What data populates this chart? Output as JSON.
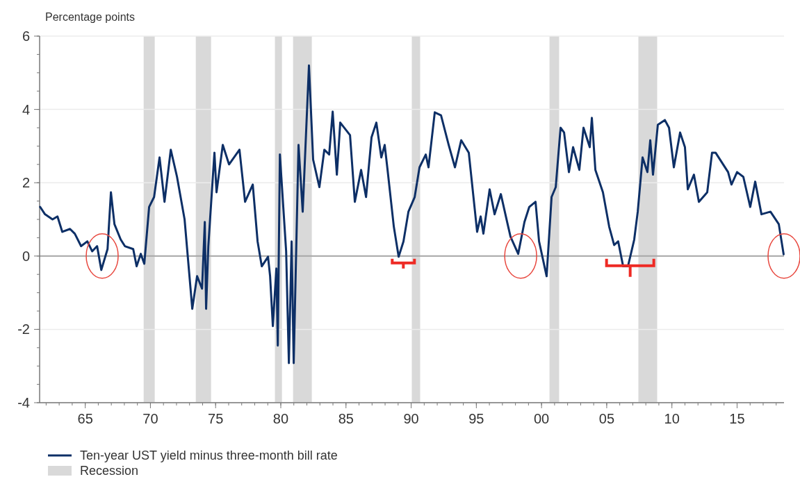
{
  "chart_data": {
    "type": "line",
    "ylabel": "Percentage points",
    "xlim": [
      1961.5,
      2018.6
    ],
    "xticks": [
      {
        "value": 1965,
        "label": "65"
      },
      {
        "value": 1970,
        "label": "70"
      },
      {
        "value": 1975,
        "label": "75"
      },
      {
        "value": 1980,
        "label": "80"
      },
      {
        "value": 1985,
        "label": "85"
      },
      {
        "value": 1990,
        "label": "90"
      },
      {
        "value": 1995,
        "label": "95"
      },
      {
        "value": 2000,
        "label": "00"
      },
      {
        "value": 2005,
        "label": "05"
      },
      {
        "value": 2010,
        "label": "10"
      },
      {
        "value": 2015,
        "label": "15"
      }
    ],
    "ylim": [
      -4,
      6
    ],
    "yticks": [
      -4,
      -2,
      0,
      2,
      4,
      6
    ],
    "grid": "y",
    "legend": "bottom",
    "ref_lines": [
      {
        "axis": "y",
        "value": 0,
        "color": "#a6a6a6"
      }
    ],
    "bands": [
      {
        "axis": "x",
        "from": 1969.48,
        "to": 1970.33,
        "label": "Recession",
        "color": "#d9d9d9"
      },
      {
        "axis": "x",
        "from": 1973.48,
        "to": 1974.65,
        "color": "#d9d9d9"
      },
      {
        "axis": "x",
        "from": 1979.55,
        "to": 1980.09,
        "color": "#d9d9d9"
      },
      {
        "axis": "x",
        "from": 1980.94,
        "to": 1982.38,
        "color": "#d9d9d9"
      },
      {
        "axis": "x",
        "from": 1990.05,
        "to": 1990.69,
        "color": "#d9d9d9"
      },
      {
        "axis": "x",
        "from": 2000.61,
        "to": 2001.35,
        "color": "#d9d9d9"
      },
      {
        "axis": "x",
        "from": 2007.43,
        "to": 2008.87,
        "color": "#d9d9d9"
      }
    ],
    "series": [
      {
        "name": "Ten-year UST yield minus three-month bill rate",
        "color": "#0d2f66",
        "x": [
          1961.54,
          1961.91,
          1962.49,
          1962.87,
          1963.24,
          1963.83,
          1964.2,
          1964.68,
          1965.16,
          1965.53,
          1965.91,
          1966.23,
          1966.71,
          1966.97,
          1967.24,
          1967.72,
          1968.04,
          1968.68,
          1968.94,
          1969.26,
          1969.53,
          1969.9,
          1970.28,
          1970.7,
          1971.08,
          1971.56,
          1972.04,
          1972.62,
          1973.21,
          1973.58,
          1973.96,
          1974.17,
          1974.27,
          1974.44,
          1974.91,
          1975.07,
          1975.55,
          1976.03,
          1976.83,
          1977.26,
          1977.85,
          1978.22,
          1978.54,
          1979.02,
          1979.18,
          1979.39,
          1979.66,
          1979.77,
          1979.93,
          1980.41,
          1980.62,
          1980.83,
          1980.99,
          1981.36,
          1981.68,
          1982.16,
          1982.48,
          1982.96,
          1983.34,
          1983.71,
          1983.98,
          1984.3,
          1984.56,
          1985.31,
          1985.68,
          1986.16,
          1986.54,
          1986.96,
          1987.33,
          1987.71,
          1987.97,
          1988.19,
          1988.67,
          1989.04,
          1989.41,
          1989.79,
          1990.27,
          1990.64,
          1991.12,
          1991.33,
          1991.81,
          1992.29,
          1992.88,
          1993.36,
          1993.84,
          1994.42,
          1995.06,
          1995.33,
          1995.54,
          1996.02,
          1996.4,
          1996.88,
          1997.36,
          1997.62,
          1998.21,
          1998.69,
          1999.06,
          1999.54,
          1999.81,
          2000.39,
          2000.77,
          2001.09,
          2001.46,
          2001.73,
          2002.1,
          2002.42,
          2002.9,
          2003.22,
          2003.7,
          2003.86,
          2004.13,
          2004.71,
          2005.19,
          2005.57,
          2005.88,
          2006.26,
          2006.63,
          2007.11,
          2007.38,
          2007.75,
          2008.12,
          2008.34,
          2008.55,
          2008.92,
          2009.46,
          2009.78,
          2010.15,
          2010.63,
          2011.0,
          2011.22,
          2011.69,
          2012.07,
          2012.71,
          2013.08,
          2013.35,
          2014.31,
          2014.57,
          2015.0,
          2015.48,
          2016.01,
          2016.39,
          2016.87,
          2017.56,
          2018.2,
          2018.57
        ],
        "values": [
          1.34,
          1.14,
          1.0,
          1.08,
          0.66,
          0.74,
          0.61,
          0.27,
          0.4,
          0.13,
          0.27,
          -0.38,
          0.19,
          1.74,
          0.87,
          0.45,
          0.27,
          0.19,
          -0.28,
          0.06,
          -0.21,
          1.34,
          1.61,
          2.69,
          1.48,
          2.9,
          2.16,
          1.0,
          -1.44,
          -0.55,
          -0.89,
          0.93,
          -1.44,
          0.27,
          2.82,
          1.74,
          3.03,
          2.5,
          2.9,
          1.48,
          1.95,
          0.4,
          -0.28,
          -0.02,
          -0.55,
          -1.91,
          -0.34,
          -2.44,
          2.77,
          0.13,
          -2.92,
          0.4,
          -2.92,
          3.03,
          1.21,
          5.2,
          2.63,
          1.88,
          2.9,
          2.77,
          3.94,
          2.22,
          3.64,
          3.3,
          1.48,
          2.35,
          1.61,
          3.24,
          3.64,
          2.69,
          3.03,
          2.35,
          0.8,
          -0.02,
          0.4,
          1.21,
          1.61,
          2.42,
          2.77,
          2.42,
          3.92,
          3.84,
          3.03,
          2.42,
          3.16,
          2.82,
          0.66,
          1.08,
          0.61,
          1.82,
          1.14,
          1.69,
          0.93,
          0.53,
          0.06,
          0.93,
          1.34,
          1.48,
          0.4,
          -0.55,
          1.61,
          1.88,
          3.5,
          3.37,
          2.29,
          2.97,
          2.35,
          3.5,
          2.97,
          3.77,
          2.35,
          1.74,
          0.8,
          0.3,
          0.4,
          -0.28,
          -0.28,
          0.45,
          1.21,
          2.69,
          2.29,
          3.16,
          2.22,
          3.58,
          3.71,
          3.5,
          2.42,
          3.37,
          2.97,
          1.82,
          2.22,
          1.48,
          1.74,
          2.82,
          2.82,
          2.29,
          1.95,
          2.29,
          2.16,
          1.34,
          2.03,
          1.14,
          1.21,
          0.87,
          0.05
        ]
      }
    ]
  }
}
